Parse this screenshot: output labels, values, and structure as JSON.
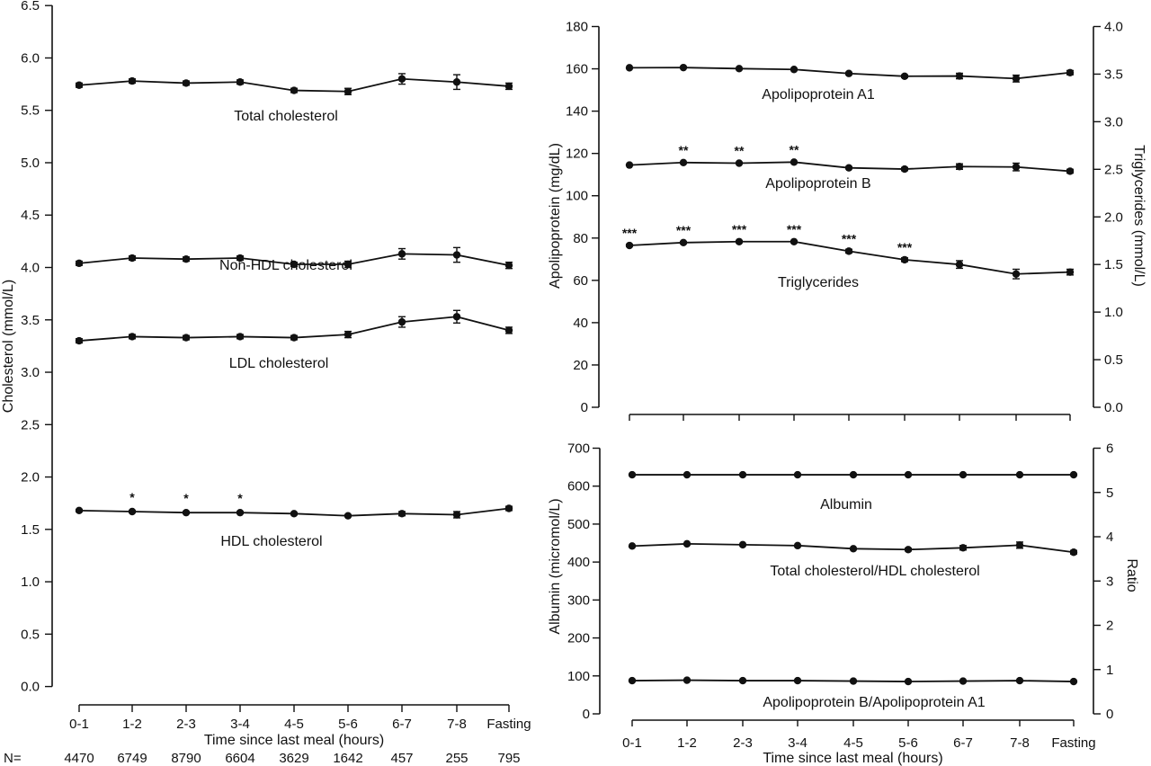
{
  "chart_data": [
    {
      "type": "line",
      "id": "left",
      "x_categories": [
        "0-1",
        "1-2",
        "2-3",
        "3-4",
        "4-5",
        "5-6",
        "6-7",
        "7-8",
        "Fasting"
      ],
      "xlabel": "Time since last meal (hours)",
      "ylabel": "Cholesterol (mmol/L)",
      "ylim": [
        0,
        6.5
      ],
      "yticks": [
        "0.0",
        "0.5",
        "1.0",
        "1.5",
        "2.0",
        "2.5",
        "3.0",
        "3.5",
        "4.0",
        "4.5",
        "5.0",
        "5.5",
        "6.0",
        "6.5"
      ],
      "n_prefix": "N=",
      "n_values": [
        "4470",
        "6749",
        "8790",
        "6604",
        "3629",
        "1642",
        "457",
        "255",
        "795"
      ],
      "series": [
        {
          "name": "Total cholesterol",
          "values": [
            5.74,
            5.78,
            5.76,
            5.77,
            5.69,
            5.68,
            5.8,
            5.77,
            5.73
          ],
          "errors": [
            0.02,
            0.02,
            0.02,
            0.02,
            0.02,
            0.03,
            0.05,
            0.07,
            0.03
          ],
          "stars": [
            "",
            "",
            "",
            "",
            "",
            "",
            "",
            "",
            ""
          ]
        },
        {
          "name": "Non-HDL cholesterol",
          "values": [
            4.04,
            4.09,
            4.08,
            4.09,
            4.03,
            4.03,
            4.13,
            4.12,
            4.02
          ],
          "errors": [
            0.02,
            0.02,
            0.02,
            0.02,
            0.02,
            0.03,
            0.05,
            0.07,
            0.03
          ],
          "stars": [
            "",
            "",
            "",
            "",
            "",
            "",
            "",
            "",
            ""
          ]
        },
        {
          "name": "LDL cholesterol",
          "values": [
            3.3,
            3.34,
            3.33,
            3.34,
            3.33,
            3.36,
            3.48,
            3.53,
            3.4
          ],
          "errors": [
            0.02,
            0.02,
            0.02,
            0.02,
            0.02,
            0.03,
            0.05,
            0.06,
            0.03
          ],
          "stars": [
            "",
            "",
            "",
            "",
            "",
            "",
            "",
            "",
            ""
          ]
        },
        {
          "name": "HDL cholesterol",
          "values": [
            1.68,
            1.67,
            1.66,
            1.66,
            1.65,
            1.63,
            1.65,
            1.64,
            1.7
          ],
          "errors": [
            0.01,
            0.01,
            0.01,
            0.01,
            0.01,
            0.01,
            0.02,
            0.03,
            0.02
          ],
          "stars": [
            "",
            "*",
            "*",
            "*",
            "",
            "",
            "",
            "",
            ""
          ]
        }
      ]
    },
    {
      "type": "line",
      "id": "top-right",
      "x_categories": [
        "0-1",
        "1-2",
        "2-3",
        "3-4",
        "4-5",
        "5-6",
        "6-7",
        "7-8",
        "Fasting"
      ],
      "ylabel": "Apolipoprotein (mg/dL)",
      "ylim": [
        0,
        180
      ],
      "yticks": [
        "0",
        "20",
        "40",
        "60",
        "80",
        "100",
        "120",
        "140",
        "160",
        "180"
      ],
      "y2label": "Triglycerides (mmol/L)",
      "y2lim": [
        0,
        4.0
      ],
      "y2ticks": [
        "0.0",
        "0.5",
        "1.0",
        "1.5",
        "2.0",
        "2.5",
        "3.0",
        "3.5",
        "4.0"
      ],
      "series": [
        {
          "name": "Apolipoprotein A1",
          "axis": "left",
          "values": [
            160.5,
            160.6,
            160.1,
            159.7,
            157.8,
            156.5,
            156.6,
            155.4,
            158.2
          ],
          "errors": [
            0.4,
            0.4,
            0.4,
            0.4,
            0.5,
            0.6,
            1.3,
            1.6,
            1.0
          ],
          "stars": [
            "",
            "",
            "",
            "",
            "",
            "",
            "",
            "",
            ""
          ]
        },
        {
          "name": "Apolipoprotein B",
          "axis": "left",
          "values": [
            114.5,
            115.7,
            115.4,
            115.9,
            113.2,
            112.6,
            113.8,
            113.6,
            111.6
          ],
          "errors": [
            0.4,
            0.4,
            0.4,
            0.4,
            0.5,
            0.7,
            1.3,
            1.8,
            0.9
          ],
          "stars": [
            "",
            "**",
            "**",
            "**",
            "",
            "",
            "",
            "",
            ""
          ]
        },
        {
          "name": "Triglycerides",
          "axis": "right",
          "values": [
            1.7,
            1.73,
            1.74,
            1.74,
            1.64,
            1.55,
            1.5,
            1.4,
            1.42
          ],
          "errors": [
            0.01,
            0.01,
            0.01,
            0.01,
            0.02,
            0.02,
            0.04,
            0.05,
            0.03
          ],
          "stars": [
            "***",
            "***",
            "***",
            "***",
            "***",
            "***",
            "",
            "",
            ""
          ]
        }
      ]
    },
    {
      "type": "line",
      "id": "bottom-right",
      "x_categories": [
        "0-1",
        "1-2",
        "2-3",
        "3-4",
        "4-5",
        "5-6",
        "6-7",
        "7-8",
        "Fasting"
      ],
      "xlabel": "Time since last meal (hours)",
      "ylabel": "Albumin (micromol/L)",
      "ylim": [
        0,
        700
      ],
      "yticks": [
        "0",
        "100",
        "200",
        "300",
        "400",
        "500",
        "600",
        "700"
      ],
      "y2label": "Ratio",
      "y2lim": [
        0,
        6
      ],
      "y2ticks": [
        "0",
        "1",
        "2",
        "3",
        "4",
        "5",
        "6"
      ],
      "series": [
        {
          "name": "Albumin",
          "axis": "left",
          "values": [
            630,
            630,
            630,
            630,
            630,
            630,
            630,
            630,
            630
          ],
          "errors": [
            0,
            0,
            0,
            0,
            0,
            0,
            0,
            0,
            0
          ],
          "stars": [
            "",
            "",
            "",
            "",
            "",
            "",
            "",
            "",
            ""
          ]
        },
        {
          "name": "Total cholesterol/HDL cholesterol",
          "axis": "right",
          "values": [
            3.79,
            3.84,
            3.82,
            3.8,
            3.73,
            3.71,
            3.75,
            3.81,
            3.65
          ],
          "errors": [
            0.02,
            0.02,
            0.02,
            0.02,
            0.02,
            0.03,
            0.05,
            0.07,
            0.04
          ],
          "stars": [
            "",
            "",
            "",
            "",
            "",
            "",
            "",
            "",
            ""
          ]
        },
        {
          "name": "Apolipoprotein B/Apolipoprotein A1",
          "axis": "right",
          "values": [
            0.75,
            0.76,
            0.75,
            0.75,
            0.74,
            0.73,
            0.74,
            0.75,
            0.73
          ],
          "errors": [
            0,
            0,
            0,
            0,
            0,
            0,
            0,
            0,
            0
          ],
          "stars": [
            "",
            "",
            "",
            "",
            "",
            "",
            "",
            "",
            ""
          ]
        }
      ]
    }
  ]
}
